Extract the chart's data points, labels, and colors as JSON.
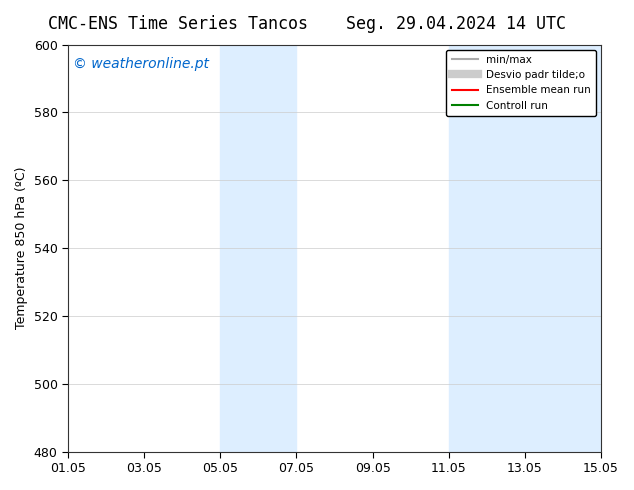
{
  "title_left": "CMC-ENS Time Series Tancos",
  "title_right": "Seg. 29.04.2024 14 UTC",
  "ylabel": "Temperature 850 hPa (ºC)",
  "ylim": [
    480,
    600
  ],
  "yticks": [
    480,
    500,
    520,
    540,
    560,
    580,
    600
  ],
  "xlim_start": "2024-05-01",
  "xlim_end": "2024-05-15",
  "xtick_labels": [
    "01.05",
    "03.05",
    "05.05",
    "07.05",
    "09.05",
    "11.05",
    "13.05",
    "15.05"
  ],
  "xtick_positions": [
    0,
    2,
    4,
    6,
    8,
    10,
    12,
    14
  ],
  "shaded_regions": [
    {
      "x_start": 4,
      "x_end": 6
    },
    {
      "x_start": 10,
      "x_end": 14
    }
  ],
  "shaded_color": "#ddeeff",
  "watermark_text": "© weatheronline.pt",
  "watermark_color": "#0066cc",
  "watermark_fontsize": 10,
  "legend_entries": [
    {
      "label": "min/max",
      "color": "#aaaaaa",
      "lw": 1.5,
      "style": "solid"
    },
    {
      "label": "Desvio padr tilde;o",
      "color": "#cccccc",
      "lw": 6,
      "style": "solid"
    },
    {
      "label": "Ensemble mean run",
      "color": "#ff0000",
      "lw": 1.5,
      "style": "solid"
    },
    {
      "label": "Controll run",
      "color": "#008000",
      "lw": 1.5,
      "style": "solid"
    }
  ],
  "bg_color": "#ffffff",
  "grid_color": "#cccccc",
  "title_fontsize": 12,
  "tick_fontsize": 9,
  "ylabel_fontsize": 9
}
